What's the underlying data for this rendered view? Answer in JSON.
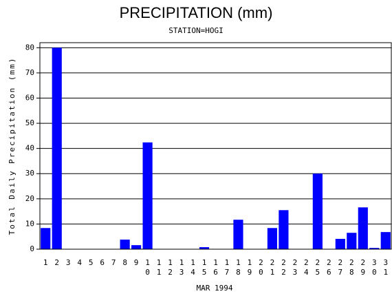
{
  "chart_data": {
    "type": "bar",
    "title": "PRECIPITATION (mm)",
    "subtitle": "STATION=HOGI",
    "xlabel": "MAR 1994",
    "ylabel": "Total Daily Precipitation (mm)",
    "categories": [
      "1",
      "2",
      "3",
      "4",
      "5",
      "6",
      "7",
      "8",
      "9",
      "10",
      "11",
      "12",
      "13",
      "14",
      "15",
      "16",
      "17",
      "18",
      "19",
      "20",
      "21",
      "22",
      "23",
      "24",
      "25",
      "26",
      "27",
      "28",
      "29",
      "30",
      "31"
    ],
    "values": [
      8.4,
      80,
      0,
      0,
      0,
      0,
      0,
      3.8,
      1.6,
      42.4,
      0,
      0,
      0,
      0,
      0.8,
      0,
      0,
      11.7,
      0,
      0,
      8.4,
      15.5,
      0,
      0,
      30,
      0,
      4.1,
      6.5,
      16.6,
      0.5,
      6.8
    ],
    "color": "#0000ff",
    "ylim": [
      0,
      82
    ],
    "yticks": [
      0,
      10,
      20,
      30,
      40,
      50,
      60,
      70,
      80
    ],
    "grid": true
  }
}
